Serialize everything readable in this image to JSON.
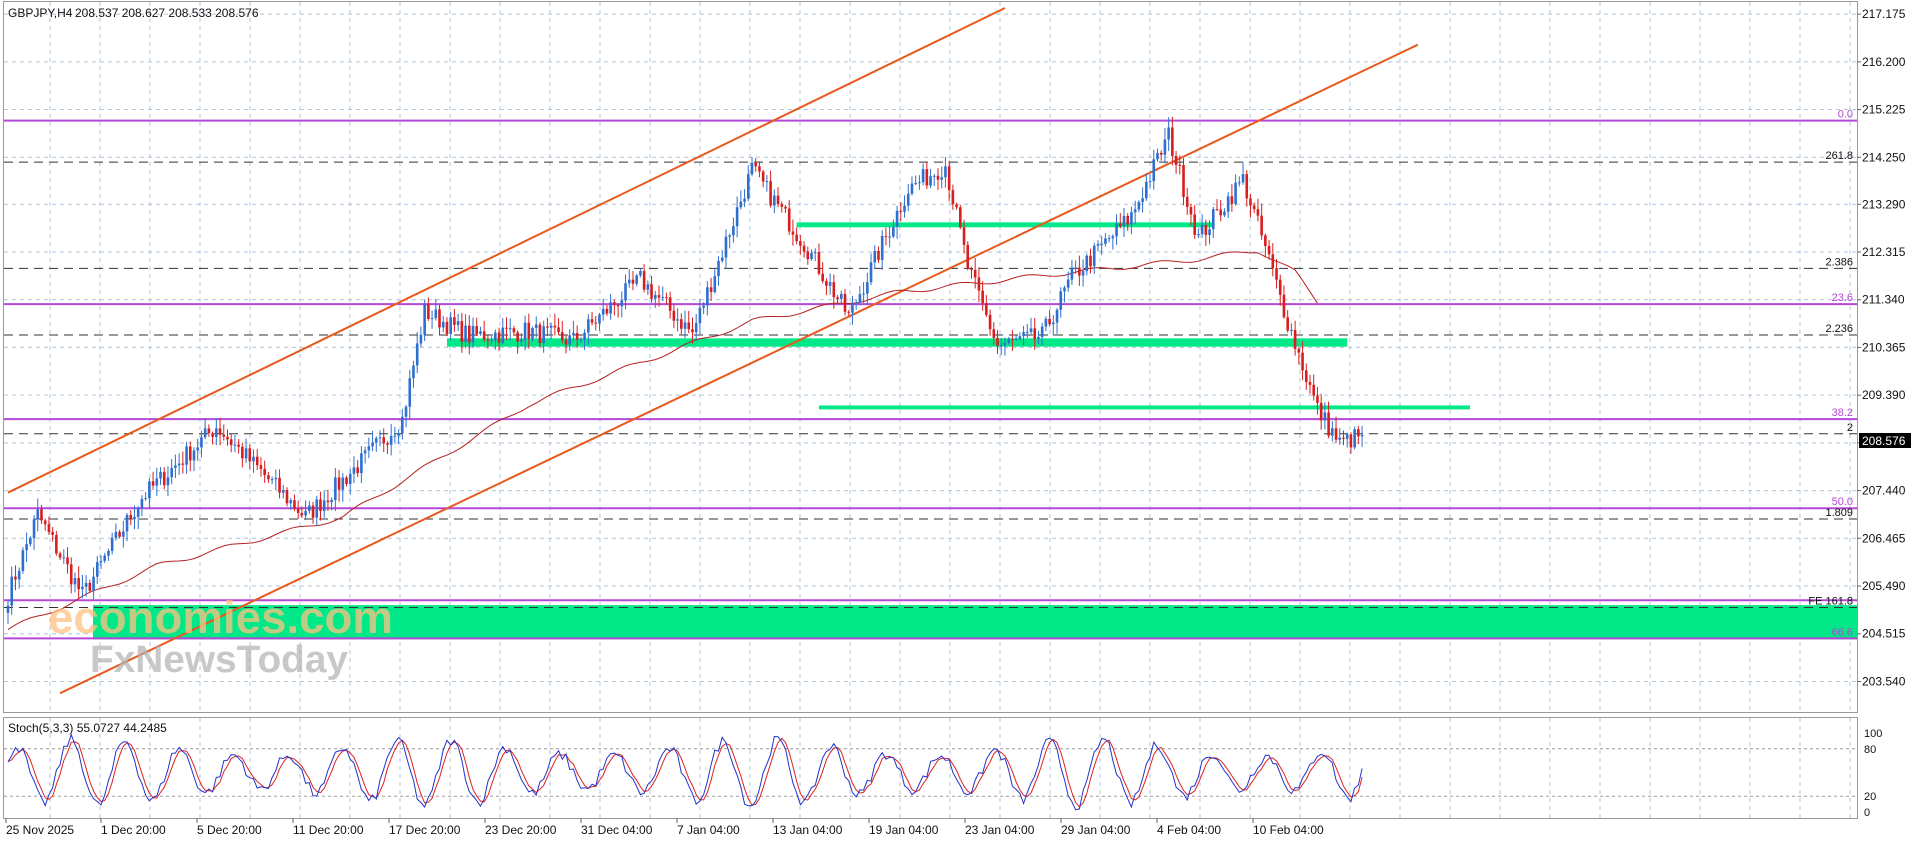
{
  "header": {
    "symbol_line": "GBPJPY,H4",
    "ohlc": "208.537 208.627 208.533 208.576"
  },
  "price_axis": {
    "ticks": [
      "217.175",
      "216.200",
      "215.225",
      "214.250",
      "213.290",
      "212.315",
      "211.340",
      "210.365",
      "209.390",
      "208.415",
      "207.440",
      "206.465",
      "205.490",
      "204.515",
      "203.540"
    ],
    "current_price": "208.576"
  },
  "time_axis": {
    "labels": [
      "25 Nov 2025",
      "1 Dec 20:00",
      "5 Dec 20:00",
      "11 Dec 20:00",
      "17 Dec 20:00",
      "23 Dec 20:00",
      "31 Dec 04:00",
      "7 Jan 04:00",
      "13 Jan 04:00",
      "19 Jan 04:00",
      "23 Jan 04:00",
      "29 Jan 04:00",
      "4 Feb 04:00",
      "10 Feb 04:00"
    ]
  },
  "level_labels": {
    "fib_0": "0.0",
    "ext_2618": "261.8",
    "ext_2386": "2.386",
    "fib_236": "23.6",
    "ext_2236": "2.236",
    "fib_382": "38.2",
    "ext_2": "2",
    "fib_50": "50.0",
    "ext_1809": "1.809",
    "fe_label": "FE 161.8",
    "fib_666": "66.6"
  },
  "indicator": {
    "title": "Stoch(5,3,3) 55.0727 44.2485",
    "levels": [
      "100",
      "80",
      "20",
      "0"
    ]
  },
  "watermark": {
    "line1": "economies.com",
    "line2": "FxNewsToday"
  },
  "colors": {
    "background": "#ffffff",
    "grid": "#b0c4d8",
    "bull_candle": "#2e6fd0",
    "bear_candle": "#d81e1e",
    "channel": "#e8591b",
    "fib_line": "#b548d6",
    "dashed_level": "#333333",
    "zone": "#00e887",
    "moving_average": "#b62222",
    "stoch_main": "#2233cc",
    "stoch_signal": "#dd2222"
  },
  "chart_data": {
    "type": "candlestick",
    "symbol": "GBPJPY",
    "timeframe": "H4",
    "ylim": [
      203.1,
      217.3
    ],
    "key_points": [
      {
        "t": 0,
        "p": 205.3
      },
      {
        "t": 8,
        "p": 206.95
      },
      {
        "t": 20,
        "p": 205.3
      },
      {
        "t": 36,
        "p": 207.3
      },
      {
        "t": 56,
        "p": 208.75
      },
      {
        "t": 80,
        "p": 206.9
      },
      {
        "t": 96,
        "p": 208.1
      },
      {
        "t": 106,
        "p": 208.9
      },
      {
        "t": 112,
        "p": 211.1
      },
      {
        "t": 124,
        "p": 210.6
      },
      {
        "t": 140,
        "p": 210.7
      },
      {
        "t": 152,
        "p": 210.5
      },
      {
        "t": 170,
        "p": 211.75
      },
      {
        "t": 184,
        "p": 210.65
      },
      {
        "t": 200,
        "p": 214.0
      },
      {
        "t": 214,
        "p": 212.5
      },
      {
        "t": 226,
        "p": 211.0
      },
      {
        "t": 242,
        "p": 213.6
      },
      {
        "t": 252,
        "p": 214.1
      },
      {
        "t": 258,
        "p": 212.0
      },
      {
        "t": 266,
        "p": 210.4
      },
      {
        "t": 278,
        "p": 210.6
      },
      {
        "t": 286,
        "p": 211.8
      },
      {
        "t": 302,
        "p": 213.05
      },
      {
        "t": 312,
        "p": 214.7
      },
      {
        "t": 320,
        "p": 212.6
      },
      {
        "t": 332,
        "p": 213.8
      },
      {
        "t": 338,
        "p": 212.4
      },
      {
        "t": 344,
        "p": 210.9
      },
      {
        "t": 352,
        "p": 209.1
      },
      {
        "t": 358,
        "p": 208.4
      },
      {
        "t": 364,
        "p": 208.576
      }
    ],
    "bar_count": 365,
    "seed": 7,
    "moving_average_points": [
      {
        "t": 0,
        "p": 204.6
      },
      {
        "t": 40,
        "p": 205.9
      },
      {
        "t": 90,
        "p": 206.9
      },
      {
        "t": 140,
        "p": 209.2
      },
      {
        "t": 200,
        "p": 210.9
      },
      {
        "t": 240,
        "p": 211.5
      },
      {
        "t": 280,
        "p": 211.85
      },
      {
        "t": 318,
        "p": 212.15
      },
      {
        "t": 336,
        "p": 212.35
      },
      {
        "t": 346,
        "p": 211.9
      },
      {
        "t": 352,
        "p": 211.3
      }
    ],
    "channel_lines": [
      {
        "from": {
          "t": 0,
          "p": 207.4
        },
        "to": {
          "t": 268,
          "p": 217.3
        }
      },
      {
        "from": {
          "t": 14,
          "p": 203.3
        },
        "to": {
          "t": 379,
          "p": 216.55
        }
      }
    ],
    "fib_levels": [
      215.0,
      211.25,
      208.9,
      207.08,
      205.2,
      204.42
    ],
    "dashed_levels": [
      214.15,
      211.98,
      210.62,
      208.6,
      206.86,
      205.05
    ],
    "zones": [
      {
        "from_t": 0,
        "to_t": 1916,
        "low": 204.4,
        "high": 205.1,
        "full_width": true
      },
      {
        "from_t": 118,
        "to_t": 360,
        "low": 210.38,
        "high": 210.55
      },
      {
        "from_t": 212,
        "to_t": 324,
        "low": 212.82,
        "high": 212.92
      },
      {
        "from_t": 218,
        "to_t": 393,
        "low": 209.1,
        "high": 209.18
      }
    ],
    "stochastic": {
      "main": 55.0727,
      "signal": 44.2485,
      "ylim": [
        0,
        100
      ],
      "levels": [
        20,
        80
      ]
    },
    "grid": true
  }
}
